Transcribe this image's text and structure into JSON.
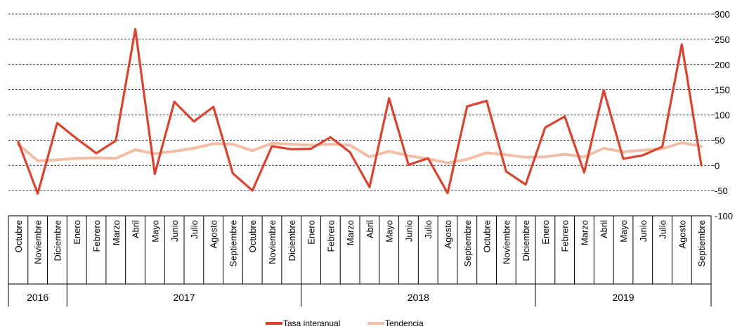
{
  "chart_data": {
    "type": "line",
    "title": "",
    "xlabel": "",
    "ylabel": "",
    "ylim": [
      -100,
      300
    ],
    "yticks": [
      300,
      250,
      200,
      150,
      100,
      50,
      0,
      -50,
      -100
    ],
    "y_axis_side": "right",
    "grid": "horizontal dashed",
    "categories": [
      "Octubre",
      "Noviembre",
      "Diciembre",
      "Enero",
      "Febrero",
      "Marzo",
      "Abril",
      "Mayo",
      "Junio",
      "Julio",
      "Agosto",
      "Septiembre",
      "Octubre",
      "Noviembre",
      "Diciembre",
      "Enero",
      "Febrero",
      "Marzo",
      "Abril",
      "Mayo",
      "Junio",
      "Julio",
      "Agosto",
      "Septiembre",
      "Octubre",
      "Noviembre",
      "Diciembre",
      "Enero",
      "Febrero",
      "Marzo",
      "Abril",
      "Mayo",
      "Junio",
      "Julio",
      "Agosto",
      "Septiembre"
    ],
    "year_groups": [
      {
        "label": "2016",
        "count": 3
      },
      {
        "label": "2017",
        "count": 12
      },
      {
        "label": "2018",
        "count": 12
      },
      {
        "label": "2019",
        "count": 9
      }
    ],
    "legend_position": "bottom-center",
    "series": [
      {
        "name": "Tasa interanual",
        "color": "#d9432f",
        "values": [
          47,
          -56,
          84,
          53,
          24,
          49,
          270,
          -17,
          126,
          87,
          116,
          -16,
          -50,
          38,
          32,
          33,
          56,
          26,
          -43,
          133,
          1,
          14,
          -55,
          117,
          128,
          -12,
          -38,
          75,
          97,
          -14,
          149,
          13,
          20,
          37,
          240,
          0
        ]
      },
      {
        "name": "Tendencia",
        "color": "#f2bfa6",
        "values": [
          42,
          9,
          11,
          14,
          15,
          14,
          31,
          23,
          28,
          34,
          43,
          42,
          29,
          44,
          42,
          40,
          42,
          40,
          17,
          28,
          19,
          13,
          5,
          12,
          25,
          21,
          16,
          17,
          22,
          17,
          34,
          27,
          30,
          33,
          45,
          38
        ]
      }
    ]
  }
}
